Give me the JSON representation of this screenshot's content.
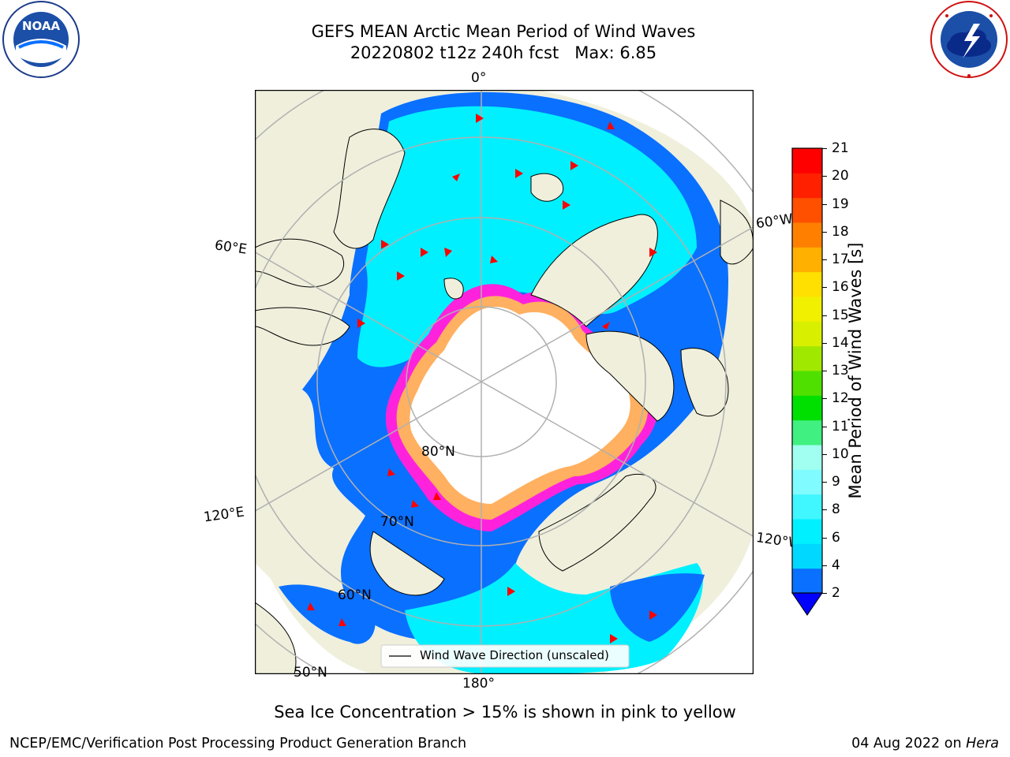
{
  "header": {
    "title_line1": "GEFS MEAN Arctic Mean Period of Wind Waves",
    "title_line2": "20220802 t12z 240h fcst   Max: 6.85"
  },
  "logos": {
    "left": {
      "text": "NOAA",
      "ring_text": "NATIONAL OCEANIC AND ATMOSPHERIC ADMINISTRATION · U.S. DEPARTMENT OF COMMERCE"
    },
    "right": {
      "ring_text": "NATIONAL WEATHER SERVICE"
    }
  },
  "map": {
    "longitude_labels": {
      "top": "0°",
      "bottom": "180°",
      "upper_left": "60°E",
      "lower_left": "120°E",
      "upper_right": "60°W",
      "lower_right": "120°W"
    },
    "latitude_labels": {
      "lat80": "80°N",
      "lat70": "70°N",
      "lat60": "60°N",
      "lat50": "50°N"
    },
    "legend": {
      "label": "Wind Wave Direction (unscaled)"
    },
    "colors": {
      "land": "#efefdc",
      "ocean_light": "#00f0ff",
      "ocean_dark": "#0a70ff",
      "ice_pink": "#ff22dd",
      "ice_orange": "#ffb060",
      "ice_white": "#ffffff",
      "arrow": "#ff0000",
      "grid": "#b0b0b0"
    }
  },
  "colorbar": {
    "label": "Mean Period of Wind Waves [s]",
    "ticks": [
      "21",
      "20",
      "19",
      "18",
      "17",
      "16",
      "15",
      "14",
      "13",
      "12",
      "11",
      "10",
      "9",
      "8",
      "6",
      "4",
      "2"
    ],
    "colors": [
      "#0a70ff",
      "#00d8ff",
      "#00f0ff",
      "#40f6ff",
      "#80fbff",
      "#a0fff0",
      "#40f080",
      "#00e000",
      "#50e000",
      "#a0e800",
      "#d8f000",
      "#f0f000",
      "#ffe000",
      "#ffb000",
      "#ff8000",
      "#ff5000",
      "#ff2000",
      "#ff0000"
    ],
    "extend_color": "#0000ff"
  },
  "notes": {
    "ice_note": "Sea Ice Concentration > 15% is shown in pink to yellow"
  },
  "footer": {
    "left": "NCEP/EMC/Verification Post Processing Product Generation Branch",
    "right_date": "04 Aug 2022 on",
    "right_host": "Hera"
  }
}
